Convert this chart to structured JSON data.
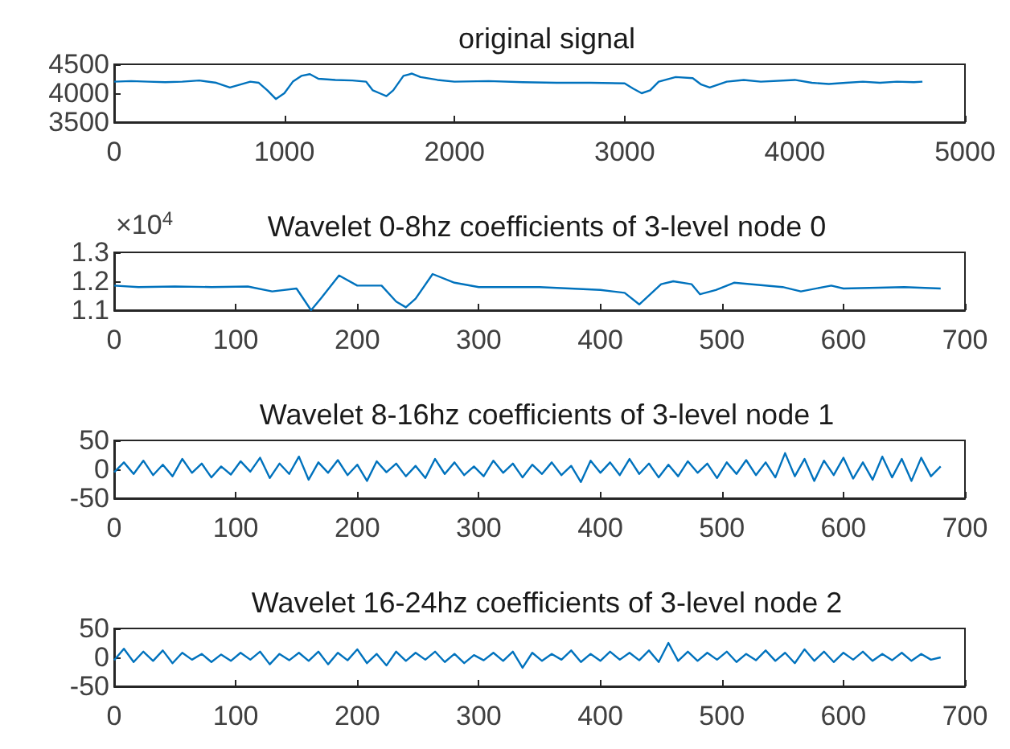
{
  "chart_data": [
    {
      "type": "line",
      "title": "original signal",
      "x": [
        0,
        100,
        200,
        300,
        400,
        500,
        600,
        680,
        800,
        850,
        900,
        950,
        1000,
        1050,
        1100,
        1150,
        1200,
        1300,
        1400,
        1480,
        1520,
        1560,
        1600,
        1640,
        1700,
        1750,
        1800,
        1900,
        2000,
        2200,
        2400,
        2600,
        2800,
        3000,
        3050,
        3100,
        3150,
        3200,
        3300,
        3400,
        3450,
        3500,
        3600,
        3700,
        3800,
        4000,
        4100,
        4200,
        4300,
        4400,
        4500,
        4600,
        4700,
        4750
      ],
      "series": [
        {
          "color": "#0072bd",
          "values": [
            4200,
            4210,
            4200,
            4190,
            4200,
            4220,
            4180,
            4100,
            4200,
            4180,
            4050,
            3900,
            4000,
            4200,
            4300,
            4330,
            4250,
            4230,
            4220,
            4200,
            4050,
            4000,
            3950,
            4050,
            4300,
            4340,
            4280,
            4230,
            4200,
            4210,
            4190,
            4180,
            4180,
            4170,
            4080,
            4000,
            4050,
            4200,
            4280,
            4260,
            4150,
            4100,
            4200,
            4230,
            4200,
            4230,
            4180,
            4160,
            4180,
            4200,
            4180,
            4200,
            4190,
            4200
          ]
        }
      ],
      "xlim": [
        0,
        5000
      ],
      "xticks": [
        0,
        1000,
        2000,
        3000,
        4000,
        5000
      ],
      "ylim": [
        3500,
        4500
      ],
      "yticks": [
        3500,
        4000,
        4500
      ]
    },
    {
      "type": "line",
      "title": "Wavelet 0-8hz coefficients of 3-level node 0",
      "annotations": [
        "×10$^{4}$"
      ],
      "x": [
        0,
        20,
        50,
        80,
        110,
        130,
        150,
        162,
        170,
        185,
        200,
        220,
        232,
        240,
        248,
        262,
        280,
        300,
        350,
        400,
        420,
        432,
        450,
        460,
        475,
        482,
        495,
        510,
        550,
        565,
        590,
        600,
        650,
        680
      ],
      "series": [
        {
          "color": "#0072bd",
          "values": [
            1.185,
            1.18,
            1.182,
            1.18,
            1.182,
            1.165,
            1.175,
            1.1,
            1.14,
            1.22,
            1.185,
            1.185,
            1.13,
            1.11,
            1.14,
            1.225,
            1.195,
            1.18,
            1.18,
            1.17,
            1.16,
            1.12,
            1.19,
            1.2,
            1.19,
            1.155,
            1.17,
            1.195,
            1.18,
            1.165,
            1.185,
            1.175,
            1.18,
            1.175
          ]
        }
      ],
      "xlim": [
        0,
        700
      ],
      "xticks": [
        0,
        100,
        200,
        300,
        400,
        500,
        600,
        700
      ],
      "ylim": [
        1.1,
        1.3
      ],
      "yticks": [
        1.1,
        1.2,
        1.3
      ]
    },
    {
      "type": "line",
      "title": "Wavelet 8-16hz coefficients of 3-level node 1",
      "x": [
        0,
        8,
        16,
        24,
        32,
        40,
        48,
        56,
        64,
        72,
        80,
        88,
        96,
        104,
        112,
        120,
        128,
        136,
        144,
        152,
        160,
        168,
        176,
        184,
        192,
        200,
        208,
        216,
        224,
        232,
        240,
        248,
        256,
        264,
        272,
        280,
        288,
        296,
        304,
        312,
        320,
        328,
        336,
        344,
        352,
        360,
        368,
        376,
        384,
        392,
        400,
        408,
        416,
        424,
        432,
        440,
        448,
        456,
        464,
        472,
        480,
        488,
        496,
        504,
        512,
        520,
        528,
        536,
        544,
        552,
        560,
        568,
        576,
        584,
        592,
        600,
        608,
        616,
        624,
        632,
        640,
        648,
        656,
        664,
        672,
        680
      ],
      "series": [
        {
          "color": "#0072bd",
          "values": [
            -5,
            12,
            -8,
            15,
            -10,
            8,
            -12,
            18,
            -6,
            10,
            -14,
            5,
            -9,
            14,
            -4,
            20,
            -15,
            10,
            -8,
            22,
            -18,
            12,
            -6,
            16,
            -10,
            8,
            -20,
            14,
            -5,
            10,
            -12,
            6,
            -15,
            18,
            -8,
            12,
            -10,
            5,
            -12,
            15,
            -6,
            10,
            -14,
            8,
            -8,
            12,
            -10,
            6,
            -22,
            15,
            -6,
            12,
            -10,
            18,
            -8,
            10,
            -14,
            8,
            -12,
            14,
            -6,
            10,
            -15,
            12,
            -8,
            16,
            -10,
            12,
            -14,
            28,
            -12,
            18,
            -20,
            15,
            -10,
            20,
            -16,
            12,
            -18,
            22,
            -14,
            18,
            -20,
            20,
            -12,
            5
          ]
        }
      ],
      "xlim": [
        0,
        700
      ],
      "xticks": [
        0,
        100,
        200,
        300,
        400,
        500,
        600,
        700
      ],
      "ylim": [
        -50,
        50
      ],
      "yticks": [
        -50,
        0,
        50
      ]
    },
    {
      "type": "line",
      "title": "Wavelet 16-24hz coefficients of 3-level node 2",
      "x": [
        0,
        8,
        16,
        24,
        32,
        40,
        48,
        56,
        64,
        72,
        80,
        88,
        96,
        104,
        112,
        120,
        128,
        136,
        144,
        152,
        160,
        168,
        176,
        184,
        192,
        200,
        208,
        216,
        224,
        232,
        240,
        248,
        256,
        264,
        272,
        280,
        288,
        296,
        304,
        312,
        320,
        328,
        336,
        344,
        352,
        360,
        368,
        376,
        384,
        392,
        400,
        408,
        416,
        424,
        432,
        440,
        448,
        456,
        464,
        472,
        480,
        488,
        496,
        504,
        512,
        520,
        528,
        536,
        544,
        552,
        560,
        568,
        576,
        584,
        592,
        600,
        608,
        616,
        624,
        632,
        640,
        648,
        656,
        664,
        672,
        680
      ],
      "series": [
        {
          "color": "#0072bd",
          "values": [
            -5,
            15,
            -8,
            10,
            -6,
            12,
            -10,
            8,
            -4,
            6,
            -8,
            5,
            -6,
            8,
            -4,
            10,
            -12,
            6,
            -5,
            8,
            -6,
            10,
            -12,
            8,
            -5,
            14,
            -10,
            6,
            -14,
            10,
            -6,
            8,
            -4,
            10,
            -8,
            6,
            -10,
            4,
            -5,
            8,
            -6,
            10,
            -18,
            8,
            -6,
            6,
            -4,
            12,
            -8,
            6,
            -6,
            10,
            -4,
            8,
            -5,
            12,
            -8,
            25,
            -6,
            10,
            -6,
            8,
            -4,
            10,
            -8,
            6,
            -5,
            12,
            -6,
            8,
            -10,
            14,
            -6,
            10,
            -8,
            8,
            -4,
            10,
            -6,
            6,
            -5,
            8,
            -6,
            6,
            -4,
            0
          ]
        }
      ],
      "xlim": [
        0,
        700
      ],
      "xticks": [
        0,
        100,
        200,
        300,
        400,
        500,
        600,
        700
      ],
      "ylim": [
        -50,
        50
      ],
      "yticks": [
        -50,
        0,
        50
      ]
    }
  ]
}
